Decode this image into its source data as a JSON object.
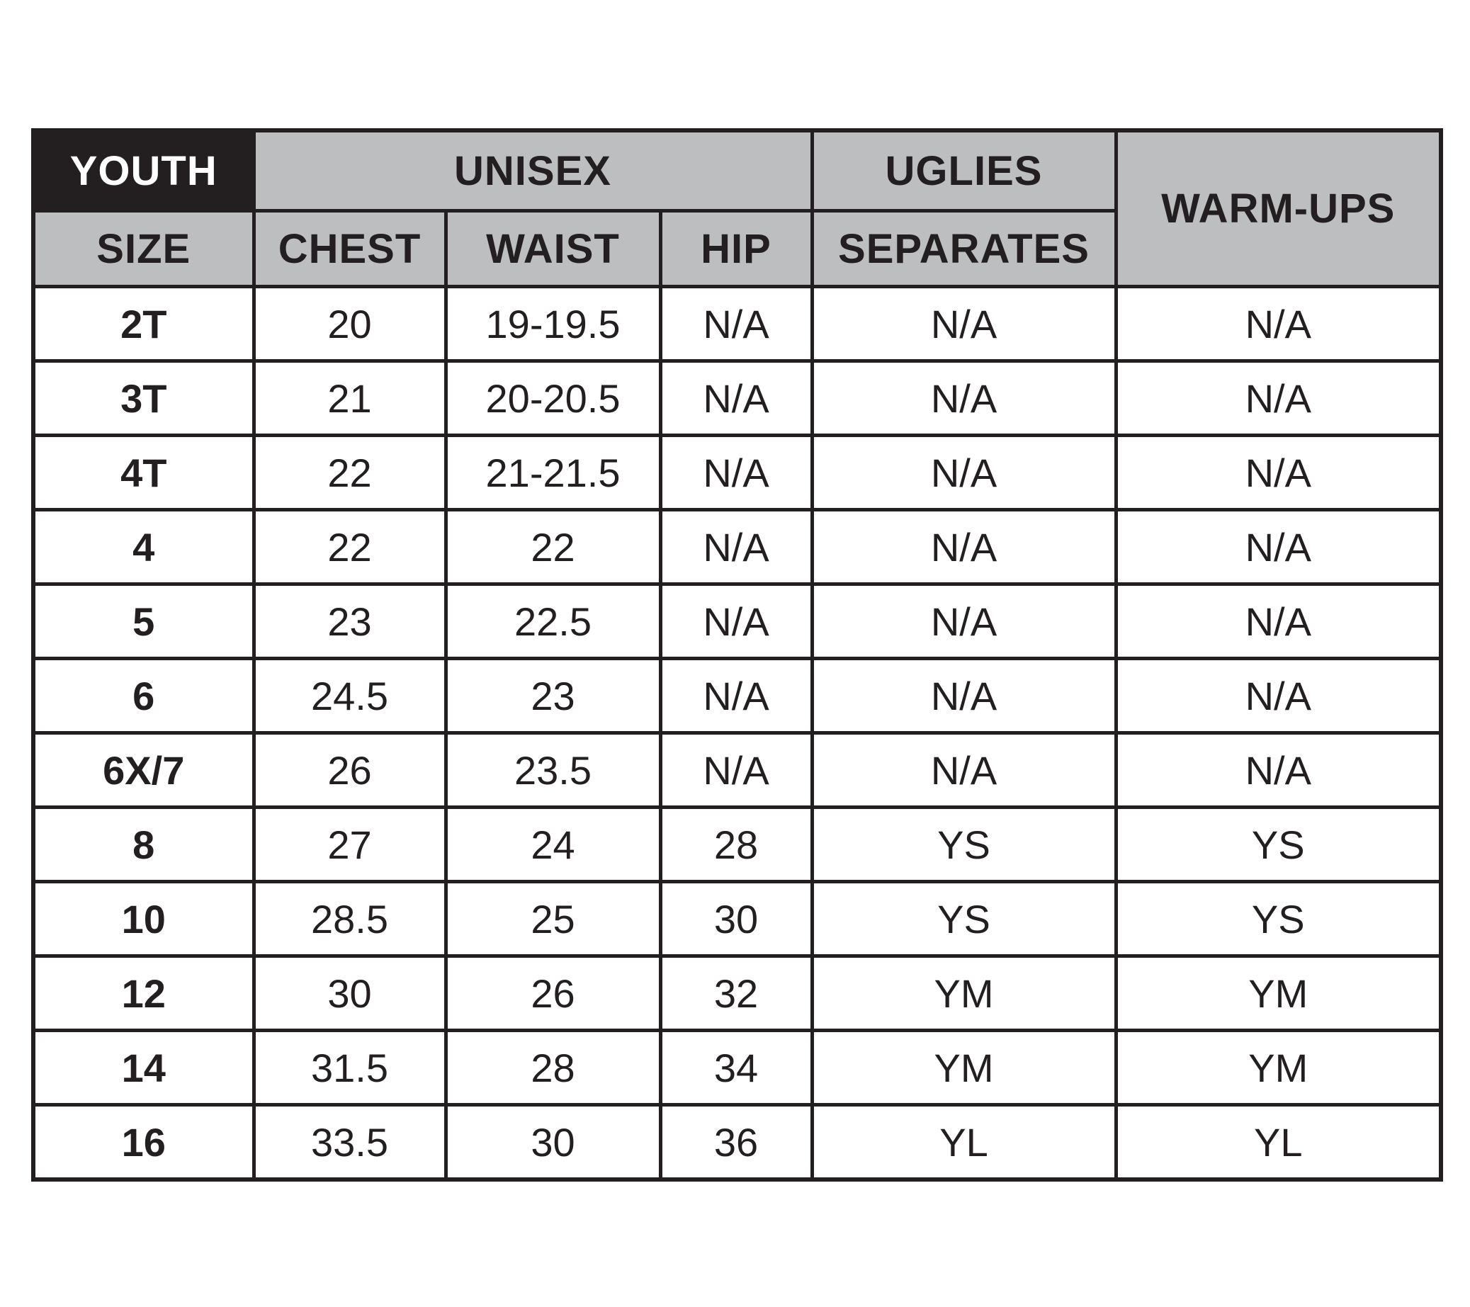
{
  "header": {
    "youth": "YOUTH",
    "unisex": "UNISEX",
    "uglies": "UGLIES",
    "warmups": "WARM-UPS",
    "size": "SIZE",
    "chest": "CHEST",
    "waist": "WAIST",
    "hip": "HIP",
    "separates": "SEPARATES"
  },
  "rows": [
    [
      "2T",
      "20",
      "19-19.5",
      "N/A",
      "N/A",
      "N/A"
    ],
    [
      "3T",
      "21",
      "20-20.5",
      "N/A",
      "N/A",
      "N/A"
    ],
    [
      "4T",
      "22",
      "21-21.5",
      "N/A",
      "N/A",
      "N/A"
    ],
    [
      "4",
      "22",
      "22",
      "N/A",
      "N/A",
      "N/A"
    ],
    [
      "5",
      "23",
      "22.5",
      "N/A",
      "N/A",
      "N/A"
    ],
    [
      "6",
      "24.5",
      "23",
      "N/A",
      "N/A",
      "N/A"
    ],
    [
      "6X/7",
      "26",
      "23.5",
      "N/A",
      "N/A",
      "N/A"
    ],
    [
      "8",
      "27",
      "24",
      "28",
      "YS",
      "YS"
    ],
    [
      "10",
      "28.5",
      "25",
      "30",
      "YS",
      "YS"
    ],
    [
      "12",
      "30",
      "26",
      "32",
      "YM",
      "YM"
    ],
    [
      "14",
      "31.5",
      "28",
      "34",
      "YM",
      "YM"
    ],
    [
      "16",
      "33.5",
      "30",
      "36",
      "YL",
      "YL"
    ]
  ],
  "colors": {
    "header_dark": "#231f20",
    "header_gray": "#bcbec0",
    "border": "#231f20"
  }
}
